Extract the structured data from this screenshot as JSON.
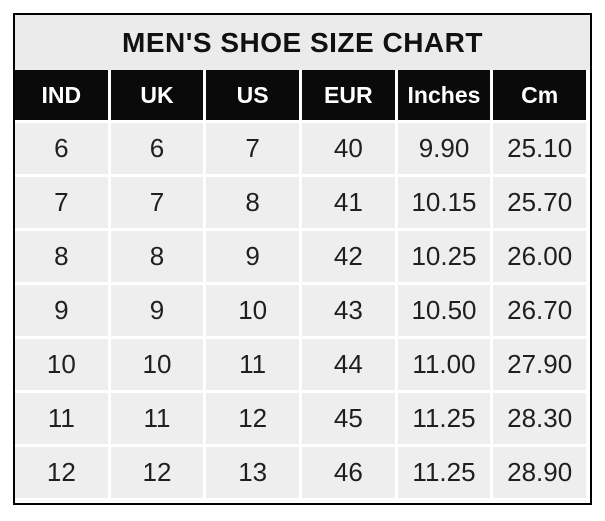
{
  "page": {
    "background": "#ffffff"
  },
  "chart_data": {
    "type": "table",
    "title": "MEN'S SHOE SIZE CHART",
    "columns": [
      "IND",
      "UK",
      "US",
      "EUR",
      "Inches",
      "Cm"
    ],
    "rows": [
      [
        "6",
        "6",
        "7",
        "40",
        "9.90",
        "25.10"
      ],
      [
        "7",
        "7",
        "8",
        "41",
        "10.15",
        "25.70"
      ],
      [
        "8",
        "8",
        "9",
        "42",
        "10.25",
        "26.00"
      ],
      [
        "9",
        "9",
        "10",
        "43",
        "10.50",
        "26.70"
      ],
      [
        "10",
        "10",
        "11",
        "44",
        "11.00",
        "27.90"
      ],
      [
        "11",
        "11",
        "12",
        "45",
        "11.25",
        "28.30"
      ],
      [
        "12",
        "12",
        "13",
        "46",
        "11.25",
        "28.90"
      ]
    ],
    "layout_hints": {
      "legend": "none",
      "grid": "light-gray cells separated by white 3px gaps inside a 2px black frame",
      "header_style": "white bold text on black cells",
      "title_style": "black bold text on light gray bar"
    }
  },
  "colors": {
    "frame_border": "#000000",
    "title_bg": "#ebebeb",
    "title_text": "#111111",
    "header_bg": "#0a0a0a",
    "header_text": "#ffffff",
    "cell_bg": "#eeeeee",
    "cell_text": "#1f1f1f",
    "gap_color": "#ffffff"
  }
}
